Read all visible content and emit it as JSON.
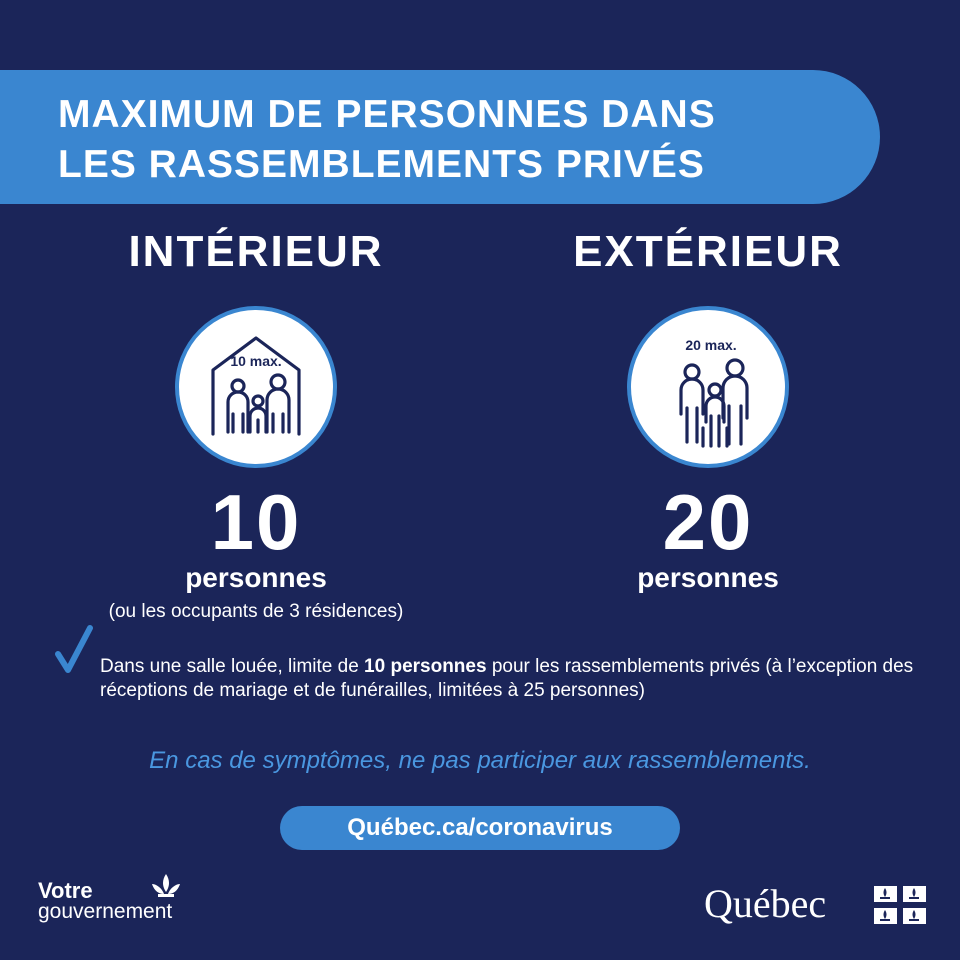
{
  "banner": {
    "line1": "MAXIMUM DE PERSONNES DANS",
    "line2": "LES RASSEMBLEMENTS PRIVÉS"
  },
  "indoor": {
    "heading": "INTÉRIEUR",
    "icon_label": "10 max.",
    "icon": "house-family-icon",
    "number": "10",
    "unit": "personnes",
    "note": "(ou les occupants de 3 résidences)"
  },
  "outdoor": {
    "heading": "EXTÉRIEUR",
    "icon_label": "20 max.",
    "icon": "group-people-icon",
    "number": "20",
    "unit": "personnes"
  },
  "bullet": {
    "icon": "checkmark-icon",
    "part1": "Dans une salle louée, limite de ",
    "bold": "10 personnes",
    "part2": " pour les rassemblements privés (à l’exception des réceptions de mariage et de funérailles, limitées à 25 personnes)"
  },
  "warning": "En cas de symptômes, ne pas participer aux rassemblements.",
  "url": "Québec.ca/coronavirus",
  "footer": {
    "left_line1": "Votre",
    "left_line2": "gouvernement",
    "left_icon": "fleur-de-lis-icon",
    "right_wordmark": "Québec",
    "right_icon": "quebec-flag-icon"
  },
  "colors": {
    "background": "#1b2559",
    "accent": "#3a86d0",
    "warning_text": "#4a97e0",
    "icon_stroke": "#1b2559"
  }
}
